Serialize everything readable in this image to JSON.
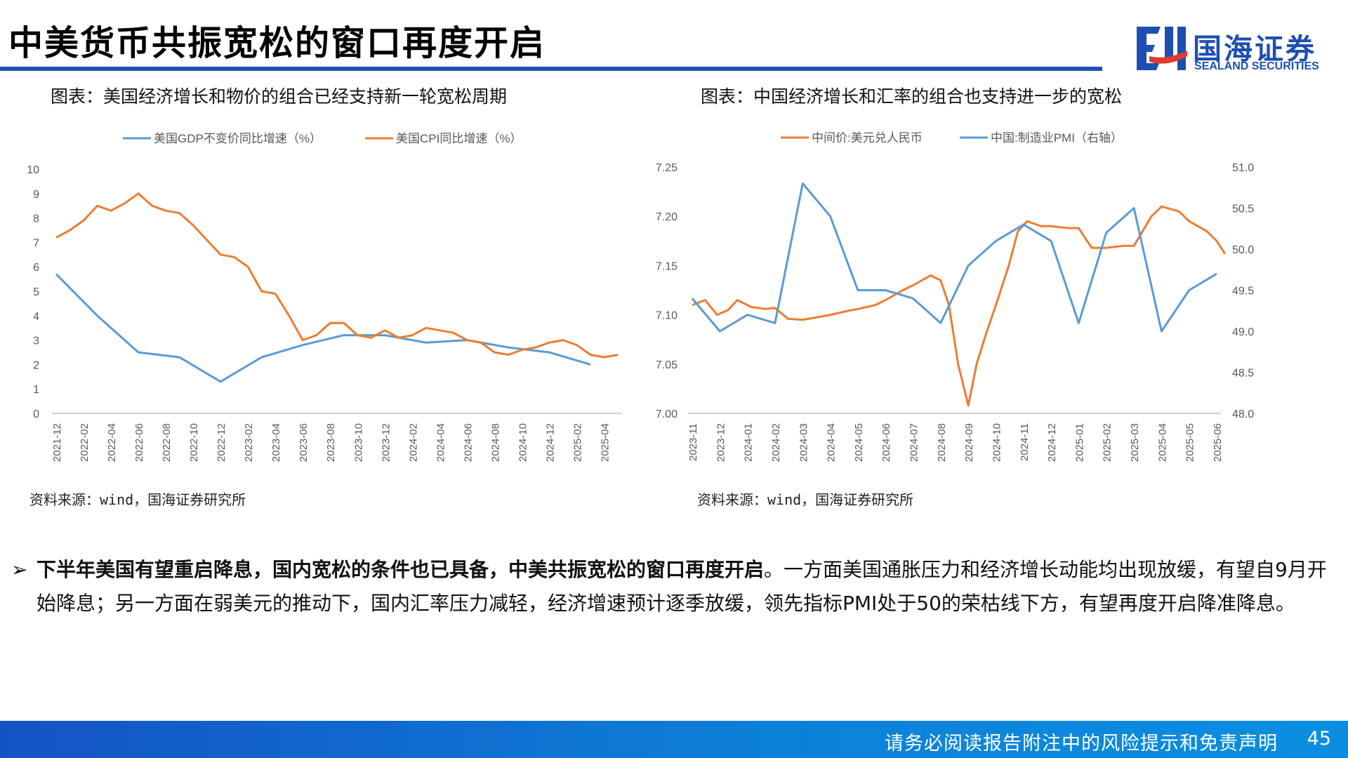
{
  "slide": {
    "title": "中美货币共振宽松的窗口再度开启",
    "logo": {
      "name": "国海证券",
      "sub": "SEALAND SECURITIES"
    },
    "left": {
      "caption": "图表：美国经济增长和物价的组合已经支持新一轮宽松周期",
      "source": "资料来源：wind，国海证券研究所"
    },
    "right": {
      "caption": "图表：中国经济增长和汇率的组合也支持进一步的宽松",
      "source": "资料来源：wind，国海证券研究所"
    },
    "bullet": {
      "marker": "➢",
      "bold": "下半年美国有望重启降息，国内宽松的条件也已具备，中美共振宽松的窗口再度开启",
      "rest": "。一方面美国通胀压力和经济增长动能均出现放缓，有望自9月开始降息；另一方面在弱美元的推动下，国内汇率压力减轻，经济增速预计逐季放缓，领先指标PMI处于50的荣枯线下方，有望再度开启降准降息。"
    },
    "footer": {
      "disclaimer": "请务必阅读报告附注中的风险提示和免责声明",
      "page": "45"
    }
  },
  "chart_data": [
    {
      "type": "line",
      "title": "",
      "x_ticks": [
        "2021-12",
        "2022-02",
        "2022-04",
        "2022-06",
        "2022-08",
        "2022-10",
        "2022-12",
        "2023-02",
        "2023-04",
        "2023-06",
        "2023-08",
        "2023-10",
        "2023-12",
        "2024-02",
        "2024-04",
        "2024-06",
        "2024-08",
        "2024-10",
        "2024-12",
        "2025-02",
        "2025-04"
      ],
      "x_range": [
        "2021-12",
        "2025-05"
      ],
      "ylim": [
        0,
        10
      ],
      "y_ticks": [
        0,
        1,
        2,
        3,
        4,
        5,
        6,
        7,
        8,
        9,
        10
      ],
      "grid": false,
      "legend": "top",
      "series": [
        {
          "name": "美国GDP不变价同比增速（%）",
          "color": "#5b9bd5",
          "points": [
            [
              "2021-12",
              5.7
            ],
            [
              "2022-03",
              4.0
            ],
            [
              "2022-06",
              2.5
            ],
            [
              "2022-09",
              2.3
            ],
            [
              "2022-12",
              1.3
            ],
            [
              "2023-03",
              2.3
            ],
            [
              "2023-06",
              2.8
            ],
            [
              "2023-09",
              3.2
            ],
            [
              "2023-12",
              3.2
            ],
            [
              "2024-03",
              2.9
            ],
            [
              "2024-06",
              3.0
            ],
            [
              "2024-09",
              2.7
            ],
            [
              "2024-12",
              2.5
            ],
            [
              "2025-03",
              2.0
            ]
          ]
        },
        {
          "name": "美国CPI同比增速（%）",
          "color": "#ed7d31",
          "points": [
            [
              "2021-12",
              7.2
            ],
            [
              "2022-01",
              7.5
            ],
            [
              "2022-02",
              7.9
            ],
            [
              "2022-03",
              8.5
            ],
            [
              "2022-04",
              8.3
            ],
            [
              "2022-05",
              8.6
            ],
            [
              "2022-06",
              9.0
            ],
            [
              "2022-07",
              8.5
            ],
            [
              "2022-08",
              8.3
            ],
            [
              "2022-09",
              8.2
            ],
            [
              "2022-10",
              7.7
            ],
            [
              "2022-11",
              7.1
            ],
            [
              "2022-12",
              6.5
            ],
            [
              "2023-01",
              6.4
            ],
            [
              "2023-02",
              6.0
            ],
            [
              "2023-03",
              5.0
            ],
            [
              "2023-04",
              4.9
            ],
            [
              "2023-05",
              4.0
            ],
            [
              "2023-06",
              3.0
            ],
            [
              "2023-07",
              3.2
            ],
            [
              "2023-08",
              3.7
            ],
            [
              "2023-09",
              3.7
            ],
            [
              "2023-10",
              3.2
            ],
            [
              "2023-11",
              3.1
            ],
            [
              "2023-12",
              3.4
            ],
            [
              "2024-01",
              3.1
            ],
            [
              "2024-02",
              3.2
            ],
            [
              "2024-03",
              3.5
            ],
            [
              "2024-04",
              3.4
            ],
            [
              "2024-05",
              3.3
            ],
            [
              "2024-06",
              3.0
            ],
            [
              "2024-07",
              2.9
            ],
            [
              "2024-08",
              2.5
            ],
            [
              "2024-09",
              2.4
            ],
            [
              "2024-10",
              2.6
            ],
            [
              "2024-11",
              2.7
            ],
            [
              "2024-12",
              2.9
            ],
            [
              "2025-01",
              3.0
            ],
            [
              "2025-02",
              2.8
            ],
            [
              "2025-03",
              2.4
            ],
            [
              "2025-04",
              2.3
            ],
            [
              "2025-05",
              2.4
            ]
          ]
        }
      ]
    },
    {
      "type": "line",
      "title": "",
      "x_ticks": [
        "2023-11",
        "2023-12",
        "2024-01",
        "2024-02",
        "2024-03",
        "2024-04",
        "2024-05",
        "2024-06",
        "2024-07",
        "2024-08",
        "2024-09",
        "2024-10",
        "2024-11",
        "2024-12",
        "2025-01",
        "2025-02",
        "2025-03",
        "2025-04",
        "2025-05",
        "2025-06"
      ],
      "x_range": [
        "2023-11",
        "2025-06"
      ],
      "ylim": [
        7.0,
        7.25
      ],
      "y_ticks": [
        "7.00",
        "7.05",
        "7.10",
        "7.15",
        "7.20",
        "7.25"
      ],
      "y2lim": [
        48.0,
        51.0
      ],
      "y2_ticks": [
        "48.0",
        "48.5",
        "49.0",
        "49.5",
        "50.0",
        "50.5",
        "51.0"
      ],
      "grid": false,
      "legend": "top",
      "series": [
        {
          "name": "中间价:美元兑人民币",
          "color": "#ed7d31",
          "axis": "left",
          "points": [
            [
              "2023-11-01",
              7.11
            ],
            [
              "2023-11-15",
              7.115
            ],
            [
              "2023-11-28",
              7.1
            ],
            [
              "2023-12-10",
              7.105
            ],
            [
              "2023-12-20",
              7.115
            ],
            [
              "2024-01-05",
              7.108
            ],
            [
              "2024-01-20",
              7.106
            ],
            [
              "2024-02-01",
              7.107
            ],
            [
              "2024-02-15",
              7.096
            ],
            [
              "2024-03-01",
              7.095
            ],
            [
              "2024-03-20",
              7.098
            ],
            [
              "2024-04-01",
              7.1
            ],
            [
              "2024-04-20",
              7.104
            ],
            [
              "2024-05-01",
              7.106
            ],
            [
              "2024-05-20",
              7.11
            ],
            [
              "2024-06-01",
              7.115
            ],
            [
              "2024-06-20",
              7.125
            ],
            [
              "2024-07-01",
              7.13
            ],
            [
              "2024-07-20",
              7.14
            ],
            [
              "2024-08-01",
              7.135
            ],
            [
              "2024-08-10",
              7.11
            ],
            [
              "2024-08-20",
              7.05
            ],
            [
              "2024-09-01",
              7.008
            ],
            [
              "2024-09-10",
              7.05
            ],
            [
              "2024-09-20",
              7.08
            ],
            [
              "2024-10-01",
              7.11
            ],
            [
              "2024-10-15",
              7.15
            ],
            [
              "2024-10-25",
              7.185
            ],
            [
              "2024-11-05",
              7.195
            ],
            [
              "2024-11-20",
              7.19
            ],
            [
              "2024-12-01",
              7.19
            ],
            [
              "2024-12-20",
              7.188
            ],
            [
              "2025-01-01",
              7.188
            ],
            [
              "2025-01-15",
              7.168
            ],
            [
              "2025-02-01",
              7.168
            ],
            [
              "2025-02-20",
              7.17
            ],
            [
              "2025-03-01",
              7.17
            ],
            [
              "2025-03-20",
              7.2
            ],
            [
              "2025-04-01",
              7.21
            ],
            [
              "2025-04-20",
              7.205
            ],
            [
              "2025-05-01",
              7.195
            ],
            [
              "2025-05-20",
              7.185
            ],
            [
              "2025-06-01",
              7.175
            ],
            [
              "2025-06-10",
              7.162
            ]
          ]
        },
        {
          "name": "中国:制造业PMI（右轴）",
          "color": "#5b9bd5",
          "axis": "right",
          "points": [
            [
              "2023-11",
              49.4
            ],
            [
              "2023-12",
              49.0
            ],
            [
              "2024-01",
              49.2
            ],
            [
              "2024-02",
              49.1
            ],
            [
              "2024-03",
              50.8
            ],
            [
              "2024-04",
              50.4
            ],
            [
              "2024-05",
              49.5
            ],
            [
              "2024-06",
              49.5
            ],
            [
              "2024-07",
              49.4
            ],
            [
              "2024-08",
              49.1
            ],
            [
              "2024-09",
              49.8
            ],
            [
              "2024-10",
              50.1
            ],
            [
              "2024-11",
              50.3
            ],
            [
              "2024-12",
              50.1
            ],
            [
              "2025-01",
              49.1
            ],
            [
              "2025-02",
              50.2
            ],
            [
              "2025-03",
              50.5
            ],
            [
              "2025-04",
              49.0
            ],
            [
              "2025-05",
              49.5
            ],
            [
              "2025-06",
              49.7
            ]
          ]
        }
      ]
    }
  ]
}
